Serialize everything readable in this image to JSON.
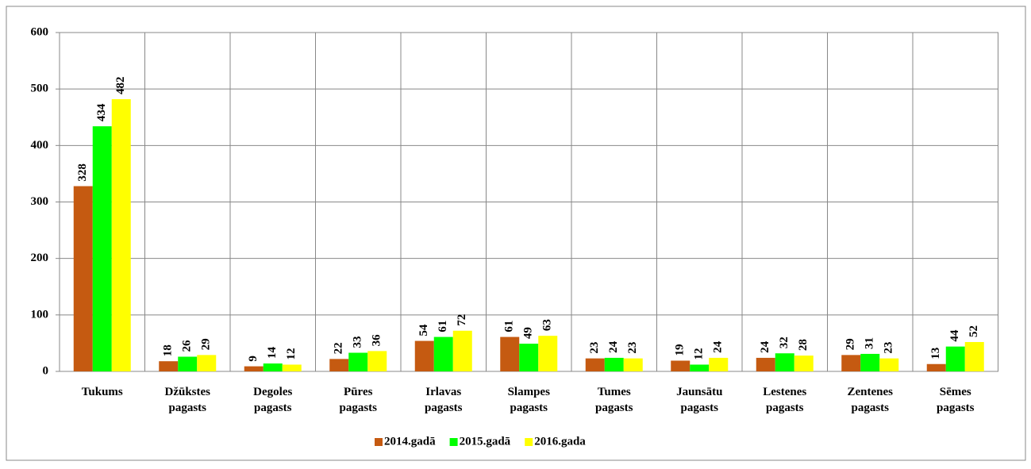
{
  "chart_data": {
    "type": "bar",
    "categories": [
      "Tukums",
      "Džūkstes pagasts",
      "Degoles pagasts",
      "Pūres pagasts",
      "Irlavas pagasts",
      "Slampes pagasts",
      "Tumes pagasts",
      "Jaunsātu pagasts",
      "Lestenes pagasts",
      "Zentenes pagasts",
      "Sēmes pagasts"
    ],
    "series": [
      {
        "name": "2014.gadā",
        "color": "#c55a11",
        "values": [
          328,
          18,
          9,
          22,
          54,
          61,
          23,
          19,
          24,
          29,
          13
        ]
      },
      {
        "name": "2015.gadā",
        "color": "#00ff00",
        "values": [
          434,
          26,
          14,
          33,
          61,
          49,
          24,
          12,
          32,
          31,
          44
        ]
      },
      {
        "name": "2016.gada",
        "color": "#ffff00",
        "values": [
          482,
          29,
          12,
          36,
          72,
          63,
          23,
          24,
          28,
          23,
          52
        ]
      }
    ],
    "ylim": [
      0,
      600
    ],
    "yticks": [
      0,
      100,
      200,
      300,
      400,
      500,
      600
    ],
    "grid": true,
    "legend": "bottom"
  }
}
